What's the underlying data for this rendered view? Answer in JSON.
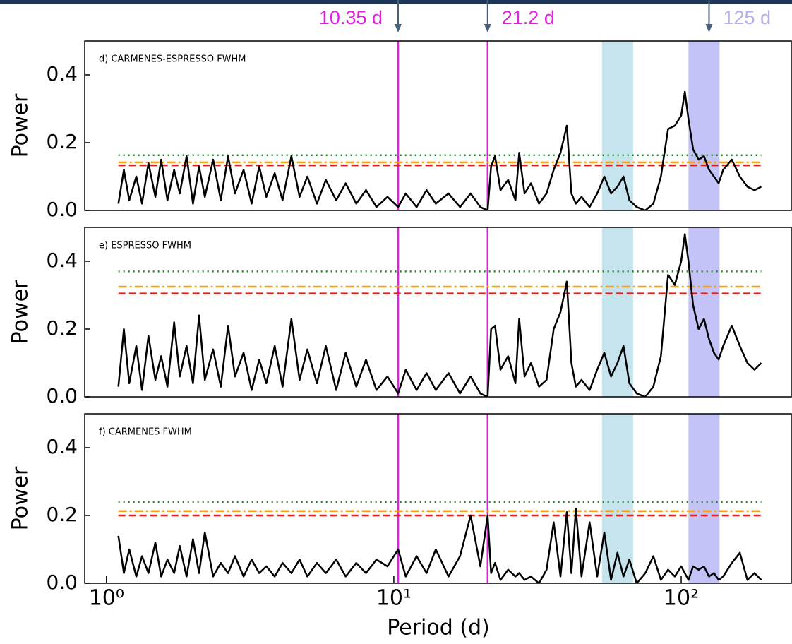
{
  "chart_data": [
    {
      "type": "line",
      "title": "d) CARMENES-ESPRESSO FWHM",
      "ylabel": "Power",
      "xscale": "log",
      "color": "#000000",
      "xlim": [
        0.84,
        243
      ],
      "ylim": [
        0,
        0.5
      ],
      "yticks": [
        {
          "value": 0,
          "label": "0.0"
        },
        0.2,
        0.4
      ],
      "x": [
        1.1,
        1.15,
        1.2,
        1.27,
        1.33,
        1.4,
        1.48,
        1.55,
        1.63,
        1.72,
        1.8,
        1.9,
        2.0,
        2.1,
        2.2,
        2.35,
        2.5,
        2.65,
        2.8,
        3.0,
        3.2,
        3.4,
        3.6,
        3.85,
        4.1,
        4.4,
        4.7,
        5.0,
        5.4,
        5.8,
        6.3,
        6.8,
        7.4,
        8.0,
        8.7,
        9.5,
        10.35,
        11.0,
        12.0,
        13.0,
        14.0,
        15.5,
        17.0,
        18.5,
        20.0,
        21.2,
        21.8,
        22.5,
        23.5,
        25,
        26.5,
        27.3,
        28.5,
        30,
        32,
        34,
        36,
        38,
        40,
        41.5,
        43,
        45,
        48,
        51,
        54,
        57,
        60,
        63,
        66,
        70,
        75,
        80,
        85,
        90,
        95,
        100,
        103,
        106,
        110,
        115,
        120,
        125,
        130,
        135,
        140,
        150,
        160,
        170,
        180,
        190
      ],
      "values": [
        0.02,
        0.12,
        0.03,
        0.1,
        0.02,
        0.14,
        0.04,
        0.15,
        0.03,
        0.12,
        0.05,
        0.16,
        0.02,
        0.13,
        0.04,
        0.15,
        0.03,
        0.16,
        0.05,
        0.12,
        0.02,
        0.13,
        0.04,
        0.11,
        0.03,
        0.16,
        0.04,
        0.1,
        0.02,
        0.09,
        0.03,
        0.08,
        0.02,
        0.06,
        0.01,
        0.04,
        0.01,
        0.05,
        0.01,
        0.06,
        0.02,
        0.05,
        0.01,
        0.05,
        0.01,
        0.0,
        0.13,
        0.16,
        0.06,
        0.09,
        0.03,
        0.17,
        0.05,
        0.08,
        0.02,
        0.05,
        0.12,
        0.17,
        0.25,
        0.05,
        0.02,
        0.04,
        0.01,
        0.05,
        0.1,
        0.05,
        0.07,
        0.1,
        0.03,
        0.01,
        0.0,
        0.02,
        0.1,
        0.24,
        0.25,
        0.28,
        0.35,
        0.27,
        0.18,
        0.15,
        0.16,
        0.12,
        0.1,
        0.08,
        0.12,
        0.15,
        0.1,
        0.07,
        0.06,
        0.07
      ],
      "hlines": [
        {
          "value": 0.163,
          "color": "#1a8a1a",
          "style": "dotted"
        },
        {
          "value": 0.142,
          "color": "#f0a020",
          "style": "dashdot"
        },
        {
          "value": 0.133,
          "color": "#e02020",
          "style": "dashed"
        }
      ],
      "vlines": [
        {
          "value": 10.35,
          "color": "#e020e0"
        },
        {
          "value": 21.2,
          "color": "#e020e0"
        }
      ],
      "bands": [
        {
          "range": [
            53,
            68
          ],
          "color": "#add8e6"
        },
        {
          "range": [
            106,
            136
          ],
          "color": "#a9a9f5"
        }
      ],
      "annotations": [
        {
          "text": "10.35 d",
          "x": 10.35,
          "color": "#e020e0"
        },
        {
          "text": "21.2 d",
          "x": 21.2,
          "color": "#e020e0"
        },
        {
          "text": "125 d",
          "x": 125,
          "color": "#b3b0ea"
        }
      ]
    },
    {
      "type": "line",
      "title": "e) ESPRESSO FWHM",
      "ylabel": "Power",
      "xscale": "log",
      "color": "#000000",
      "xlim": [
        0.84,
        243
      ],
      "ylim": [
        0,
        0.5
      ],
      "yticks": [
        {
          "value": 0,
          "label": "0.0"
        },
        0.2,
        0.4
      ],
      "x": [
        1.1,
        1.15,
        1.2,
        1.27,
        1.33,
        1.4,
        1.48,
        1.55,
        1.63,
        1.72,
        1.8,
        1.9,
        2.0,
        2.1,
        2.2,
        2.35,
        2.5,
        2.65,
        2.8,
        3.0,
        3.2,
        3.4,
        3.6,
        3.85,
        4.1,
        4.4,
        4.7,
        5.0,
        5.4,
        5.8,
        6.3,
        6.8,
        7.4,
        8.0,
        8.7,
        9.5,
        10.35,
        11.0,
        12.0,
        13.0,
        14.0,
        15.5,
        17.0,
        18.5,
        20.0,
        21.2,
        21.8,
        22.5,
        23.5,
        25,
        26.5,
        27.3,
        28.5,
        30,
        32,
        34,
        36,
        38,
        40,
        41.5,
        43,
        45,
        48,
        51,
        54,
        57,
        60,
        63,
        66,
        70,
        75,
        80,
        85,
        90,
        95,
        100,
        103,
        106,
        110,
        115,
        120,
        125,
        130,
        135,
        140,
        150,
        160,
        170,
        180,
        190
      ],
      "values": [
        0.03,
        0.2,
        0.04,
        0.15,
        0.02,
        0.18,
        0.05,
        0.12,
        0.03,
        0.22,
        0.06,
        0.15,
        0.04,
        0.24,
        0.05,
        0.14,
        0.03,
        0.21,
        0.06,
        0.13,
        0.02,
        0.11,
        0.04,
        0.15,
        0.03,
        0.23,
        0.05,
        0.14,
        0.04,
        0.15,
        0.02,
        0.13,
        0.03,
        0.11,
        0.02,
        0.06,
        0.01,
        0.08,
        0.02,
        0.07,
        0.02,
        0.07,
        0.01,
        0.06,
        0.01,
        0.0,
        0.2,
        0.21,
        0.08,
        0.12,
        0.04,
        0.23,
        0.06,
        0.1,
        0.03,
        0.05,
        0.2,
        0.25,
        0.34,
        0.1,
        0.03,
        0.05,
        0.02,
        0.08,
        0.13,
        0.06,
        0.1,
        0.15,
        0.04,
        0.01,
        0.0,
        0.03,
        0.12,
        0.36,
        0.33,
        0.4,
        0.48,
        0.4,
        0.27,
        0.2,
        0.23,
        0.17,
        0.13,
        0.11,
        0.15,
        0.21,
        0.15,
        0.1,
        0.08,
        0.1
      ],
      "hlines": [
        {
          "value": 0.37,
          "color": "#1a8a1a",
          "style": "dotted"
        },
        {
          "value": 0.325,
          "color": "#f0a020",
          "style": "dashdot"
        },
        {
          "value": 0.305,
          "color": "#e02020",
          "style": "dashed"
        }
      ],
      "vlines": [
        {
          "value": 10.35,
          "color": "#e020e0"
        },
        {
          "value": 21.2,
          "color": "#e020e0"
        }
      ],
      "bands": [
        {
          "range": [
            53,
            68
          ],
          "color": "#add8e6"
        },
        {
          "range": [
            106,
            136
          ],
          "color": "#a9a9f5"
        }
      ]
    },
    {
      "type": "line",
      "title": "f) CARMENES FWHM",
      "ylabel": "Power",
      "xlabel": "Period (d)",
      "xscale": "log",
      "color": "#000000",
      "xlim": [
        0.84,
        243
      ],
      "ylim": [
        0,
        0.5
      ],
      "yticks": [
        {
          "value": 0,
          "label": "0.0"
        },
        0.2,
        0.4
      ],
      "xticks": [
        {
          "value": 1,
          "label": "10⁰"
        },
        {
          "value": 10,
          "label": "10¹"
        },
        {
          "value": 100,
          "label": "10²"
        }
      ],
      "x": [
        1.1,
        1.15,
        1.2,
        1.27,
        1.33,
        1.4,
        1.48,
        1.55,
        1.63,
        1.72,
        1.8,
        1.9,
        2.0,
        2.1,
        2.2,
        2.35,
        2.5,
        2.65,
        2.8,
        3.0,
        3.2,
        3.4,
        3.6,
        3.85,
        4.1,
        4.4,
        4.7,
        5.0,
        5.4,
        5.8,
        6.3,
        6.8,
        7.4,
        8.0,
        8.7,
        9.5,
        10.35,
        11.0,
        12.0,
        13.0,
        14.0,
        15.5,
        17.0,
        18.5,
        20.0,
        21.2,
        21.8,
        22.5,
        23.5,
        25,
        26.5,
        27.3,
        28.5,
        30,
        32,
        34,
        36,
        38,
        40,
        41.5,
        43,
        45,
        48,
        51,
        54,
        57,
        60,
        63,
        66,
        70,
        75,
        80,
        85,
        90,
        95,
        100,
        103,
        106,
        110,
        115,
        120,
        125,
        130,
        135,
        140,
        150,
        160,
        170,
        180,
        190
      ],
      "values": [
        0.14,
        0.03,
        0.1,
        0.02,
        0.08,
        0.03,
        0.12,
        0.02,
        0.07,
        0.03,
        0.11,
        0.02,
        0.13,
        0.03,
        0.15,
        0.02,
        0.06,
        0.03,
        0.08,
        0.02,
        0.07,
        0.03,
        0.05,
        0.02,
        0.06,
        0.03,
        0.07,
        0.02,
        0.06,
        0.03,
        0.07,
        0.02,
        0.06,
        0.03,
        0.07,
        0.05,
        0.1,
        0.02,
        0.08,
        0.03,
        0.1,
        0.02,
        0.08,
        0.2,
        0.05,
        0.2,
        0.03,
        0.06,
        0.01,
        0.04,
        0.02,
        0.03,
        0.01,
        0.02,
        0.0,
        0.04,
        0.18,
        0.02,
        0.21,
        0.03,
        0.22,
        0.02,
        0.18,
        0.02,
        0.15,
        0.01,
        0.09,
        0.02,
        0.07,
        0.0,
        0.03,
        0.08,
        0.01,
        0.04,
        0.02,
        0.05,
        0.03,
        0.01,
        0.05,
        0.04,
        0.05,
        0.02,
        0.03,
        0.01,
        0.02,
        0.06,
        0.09,
        0.01,
        0.03,
        0.01
      ],
      "hlines": [
        {
          "value": 0.24,
          "color": "#1a8a1a",
          "style": "dotted"
        },
        {
          "value": 0.213,
          "color": "#f0a020",
          "style": "dashdot"
        },
        {
          "value": 0.2,
          "color": "#e02020",
          "style": "dashed"
        }
      ],
      "vlines": [
        {
          "value": 10.35,
          "color": "#e020e0"
        },
        {
          "value": 21.2,
          "color": "#e020e0"
        }
      ],
      "bands": [
        {
          "range": [
            53,
            68
          ],
          "color": "#add8e6"
        },
        {
          "range": [
            106,
            136
          ],
          "color": "#a9a9f5"
        }
      ]
    }
  ]
}
